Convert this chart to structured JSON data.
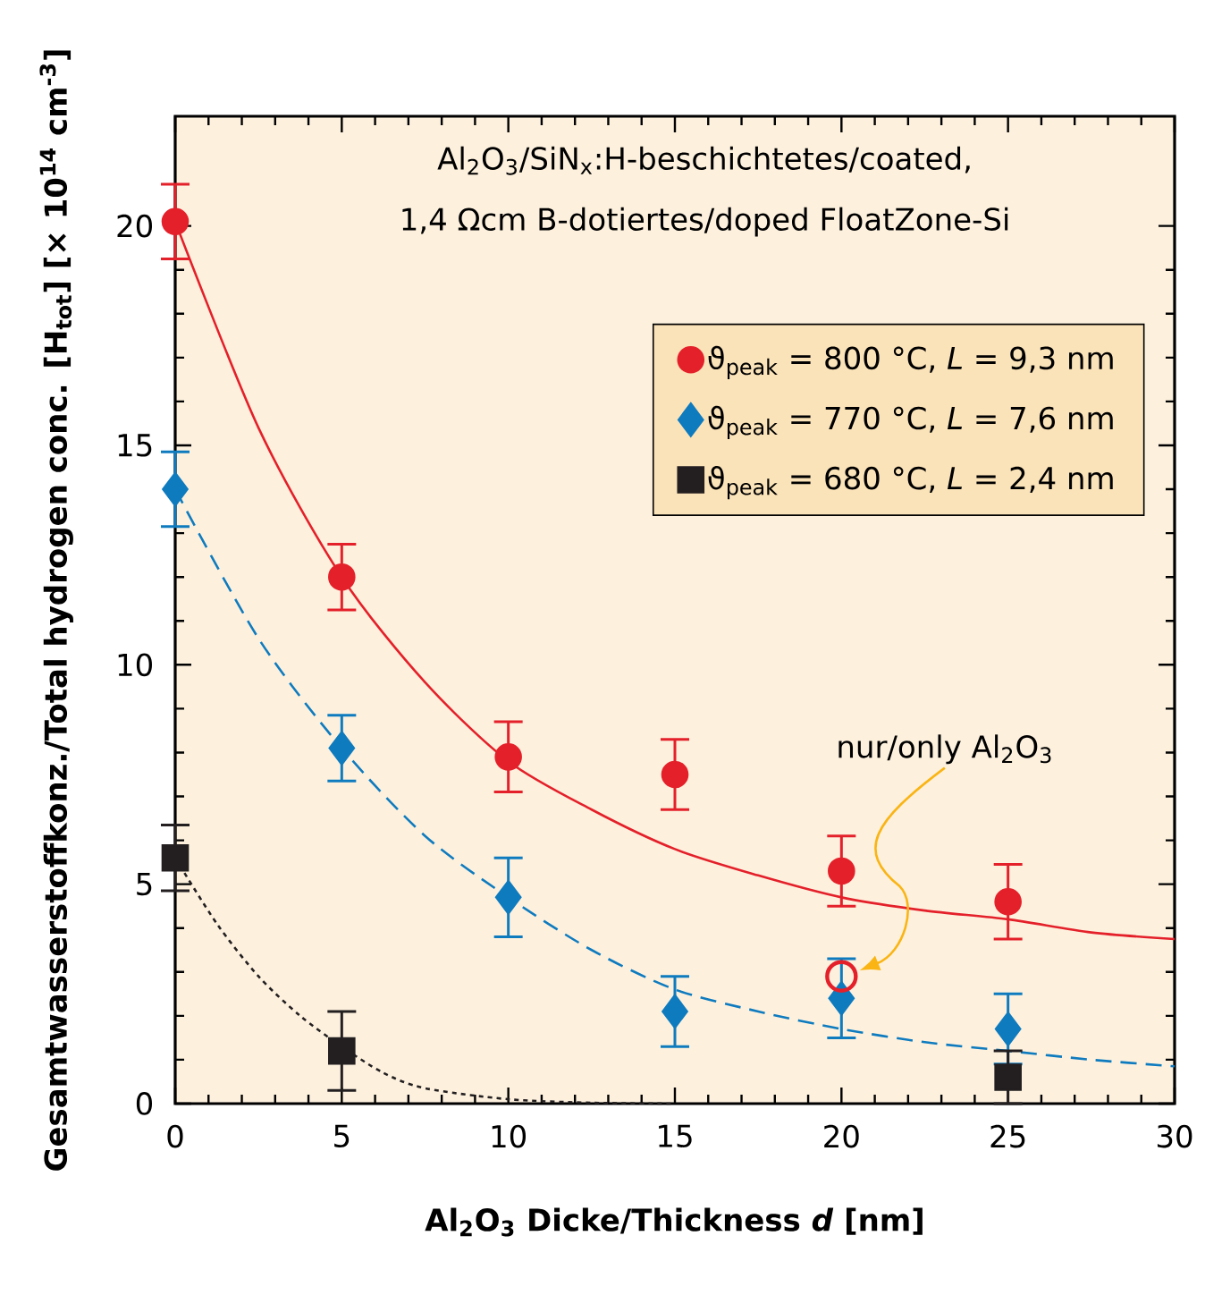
{
  "chart_data": {
    "type": "scatter",
    "xlabel": "Al$_{2}$O$_{3}$ Dicke/Thickness *d* [nm]",
    "ylabel": "Gesamtwasserstoffkonz./Total hydrogen conc.  [H$_{tot}$] [× 10$^{14}$ cm$^{-3}$]",
    "annotations": [
      "Al$_{2}$O$_{3}$/SiN$_{x}$:H-beschichtetes/coated,",
      "1,4 Ωcm B-dotiertes/doped FloatZone-Si",
      "nur/only Al$_{2}$O$_{3}$"
    ],
    "xlim": [
      0,
      30
    ],
    "ylim": [
      0,
      22.5
    ],
    "xticks": [
      0,
      5,
      10,
      15,
      20,
      25,
      30
    ],
    "yticks": [
      0,
      5,
      10,
      15,
      20
    ],
    "legend": "top right",
    "series": [
      {
        "type": "line",
        "color": "#e4202a",
        "line_style": "solid",
        "marker": "none",
        "x": [
          0,
          2.5,
          5,
          7.5,
          10,
          12.5,
          15,
          17.5,
          20,
          22.5,
          25,
          27.5,
          30
        ],
        "values": [
          20.1,
          15.4,
          12.0,
          9.6,
          7.8,
          6.7,
          5.8,
          5.2,
          4.7,
          4.4,
          4.2,
          3.9,
          3.75
        ]
      },
      {
        "type": "line",
        "color": "#0f7bbf",
        "line_style": "dashed",
        "marker": "none",
        "x": [
          0,
          2.5,
          5,
          7.5,
          10,
          12.5,
          15,
          17.5,
          20,
          22.5,
          25,
          27.5,
          30
        ],
        "values": [
          14.0,
          10.6,
          8.1,
          6.1,
          4.7,
          3.5,
          2.6,
          2.1,
          1.7,
          1.4,
          1.2,
          1.0,
          0.85
        ]
      },
      {
        "type": "line",
        "color": "#231f20",
        "line_style": "dotted",
        "marker": "none",
        "x": [
          0,
          1.25,
          2.5,
          3.75,
          5,
          6.25,
          7.5,
          10,
          12.5,
          15
        ],
        "values": [
          5.6,
          4.1,
          2.9,
          2.0,
          1.3,
          0.7,
          0.35,
          0.1,
          0.02,
          0
        ]
      },
      {
        "name": "ϑ$_{peak}$ = 800 °C, *L* = 9,3 nm",
        "color": "#e4202a",
        "marker": "circle",
        "x": [
          0,
          5,
          10,
          15,
          20,
          25
        ],
        "values": [
          20.1,
          12.0,
          7.9,
          7.5,
          5.3,
          4.6
        ],
        "errors": [
          0.85,
          0.75,
          0.8,
          0.8,
          0.8,
          0.85
        ]
      },
      {
        "name": "ϑ$_{peak}$ = 770 °C, *L* = 7,6 nm",
        "color": "#0f7bbf",
        "marker": "diamond",
        "x": [
          0,
          5,
          10,
          15,
          20,
          25
        ],
        "values": [
          14.0,
          8.1,
          4.7,
          2.1,
          2.4,
          1.7
        ],
        "errors": [
          0.85,
          0.75,
          0.9,
          0.8,
          0.9,
          0.8
        ]
      },
      {
        "name": "ϑ$_{peak}$ = 680 °C, *L* = 2,4 nm",
        "color": "#231f20",
        "marker": "square",
        "x": [
          0,
          5,
          25
        ],
        "values": [
          5.6,
          1.2,
          0.6
        ],
        "errors": [
          0.75,
          0.9,
          0.6
        ]
      },
      {
        "color": "#e4202a",
        "marker": "circle",
        "x": [
          20
        ],
        "values": [
          2.9
        ]
      }
    ]
  }
}
